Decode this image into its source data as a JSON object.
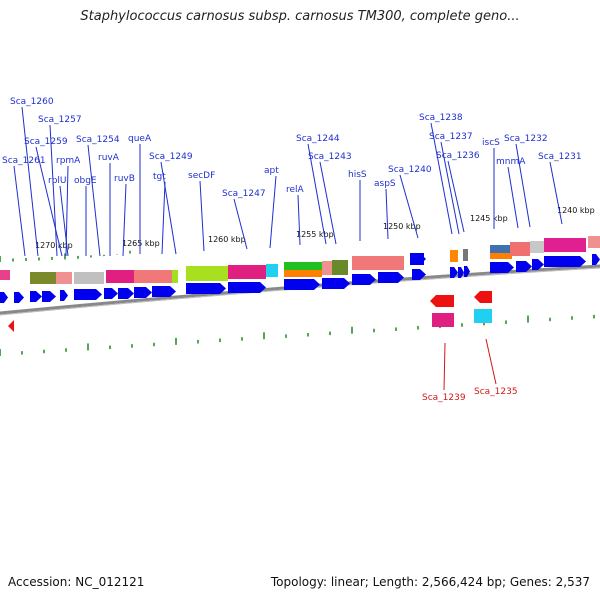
{
  "title": "Staphylococcus carnosus subsp. carnosus TM300, complete geno...",
  "footer": {
    "accession": "Accession: NC_012121",
    "summary": "Topology: linear; Length: 2,566,424 bp; Genes: 2,537"
  },
  "colors": {
    "gene_blue": "#0000ee",
    "label_blue": "#1f2fd0",
    "label_red": "#d21818",
    "tick_green": "#1a8a1a",
    "backbone_gray": "#888888"
  },
  "scale_labels": [
    "1270 kbp",
    "1265 kbp",
    "1260 kbp",
    "1255 kbp",
    "1250 kbp",
    "1245 kbp",
    "1240 kbp"
  ],
  "gene_labels_top": [
    "Sca_1260",
    "Sca_1257",
    "Sca_1259",
    "Sca_1261",
    "rpmA",
    "rplU",
    "obgE",
    "Sca_1254",
    "ruvA",
    "ruvB",
    "queA",
    "tgt",
    "Sca_1249",
    "secDF",
    "Sca_1247",
    "apt",
    "relA",
    "Sca_1244",
    "Sca_1243",
    "hisS",
    "aspS",
    "Sca_1240",
    "Sca_1238",
    "Sca_1237",
    "Sca_1236",
    "iscS",
    "Sca_1232",
    "mnmA",
    "Sca_1231"
  ],
  "gene_labels_bottom": [
    "Sca_1239",
    "Sca_1235"
  ]
}
